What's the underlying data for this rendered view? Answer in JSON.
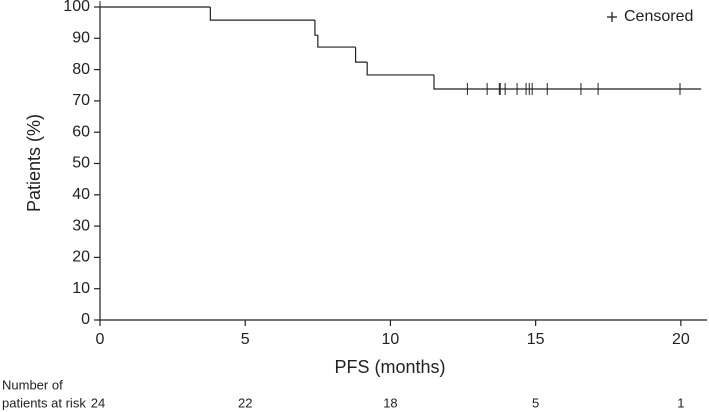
{
  "chart_data": {
    "type": "step",
    "x_label": "PFS (months)",
    "y_label": "Patients (%)",
    "xlim": [
      0,
      20.9
    ],
    "ylim": [
      0,
      100
    ],
    "xticks": [
      0,
      5,
      10,
      15,
      20
    ],
    "yticks": [
      0,
      10,
      20,
      30,
      40,
      50,
      60,
      70,
      80,
      90,
      100
    ],
    "grid": false,
    "legend": "top-right",
    "series": [
      {
        "name": "PFS",
        "color": "#222222",
        "x": [
          0,
          3.8,
          7.4,
          7.5,
          8.8,
          9.2,
          11.5,
          20.7
        ],
        "values": [
          100,
          95.8,
          91,
          87.2,
          82.4,
          78.3,
          73.8,
          73.8
        ]
      }
    ],
    "censored": {
      "name": "Censored",
      "marker": "+",
      "x": [
        0,
        12.65,
        13.33,
        13.75,
        13.78,
        13.95,
        14.36,
        14.67,
        14.78,
        14.88,
        15.4,
        16.56,
        17.15,
        19.97
      ],
      "values": [
        100,
        73.8,
        73.8,
        73.8,
        73.8,
        73.8,
        73.8,
        73.8,
        73.8,
        73.8,
        73.8,
        73.8,
        73.8,
        73.8
      ]
    },
    "at_risk": {
      "label_lines": [
        "Number of",
        "patients at risk"
      ],
      "values": [
        24,
        22,
        18,
        5,
        1
      ]
    }
  }
}
